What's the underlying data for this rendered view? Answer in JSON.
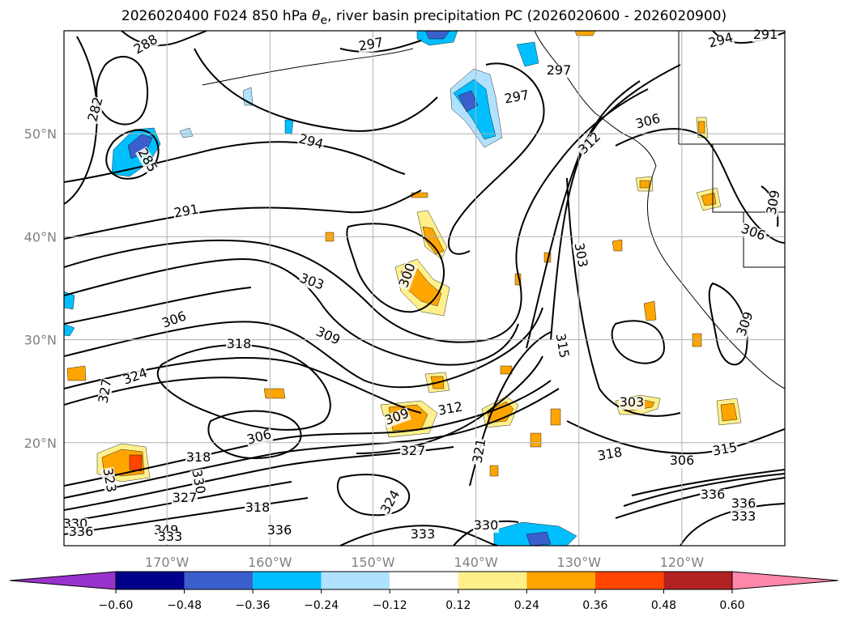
{
  "title": {
    "prefix": "2026020400 F024 850 hPa ",
    "theta": "θ",
    "subscript": "e",
    "suffix": ", river basin precipitation PC (2026020600 - 2026020900)"
  },
  "axes": {
    "lon_labels": [
      "170°W",
      "160°W",
      "150°W",
      "140°W",
      "130°W",
      "120°W"
    ],
    "lat_labels": [
      "50°N",
      "40°N",
      "30°N",
      "20°N"
    ],
    "lon_range": [
      -180,
      -110
    ],
    "lat_range": [
      10,
      60
    ],
    "grid": true
  },
  "contour_labels": [
    "288",
    "282",
    "285",
    "294",
    "291",
    "297",
    "297",
    "297",
    "306",
    "312",
    "303",
    "303",
    "300",
    "306",
    "309",
    "318",
    "324",
    "327",
    "309",
    "312",
    "315",
    "306",
    "303",
    "318",
    "306",
    "327",
    "321",
    "318",
    "315",
    "323",
    "330",
    "327",
    "318",
    "336",
    "324",
    "333",
    "330",
    "330",
    "336",
    "349",
    "333",
    "336",
    "336",
    "333",
    "291",
    "294",
    "306",
    "309",
    "309"
  ],
  "colorbar": {
    "ticks": [
      "−0.60",
      "−0.48",
      "−0.36",
      "−0.24",
      "−0.12",
      "0.12",
      "0.24",
      "0.36",
      "0.48",
      "0.60"
    ],
    "colors": [
      "#9932cc",
      "#00008b",
      "#3a5fcd",
      "#00bfff",
      "#b0e2ff",
      "#ffffff",
      "#fff08c",
      "#ffa500",
      "#ff4500",
      "#b22222",
      "#ff88aa"
    ]
  },
  "shading_colors": {
    "neg_light": "#b0e2ff",
    "neg_mid": "#00bfff",
    "neg_dark": "#3a5fcd",
    "pos_light": "#fff08c",
    "pos_mid": "#ffa500",
    "pos_dark": "#ff4500"
  }
}
